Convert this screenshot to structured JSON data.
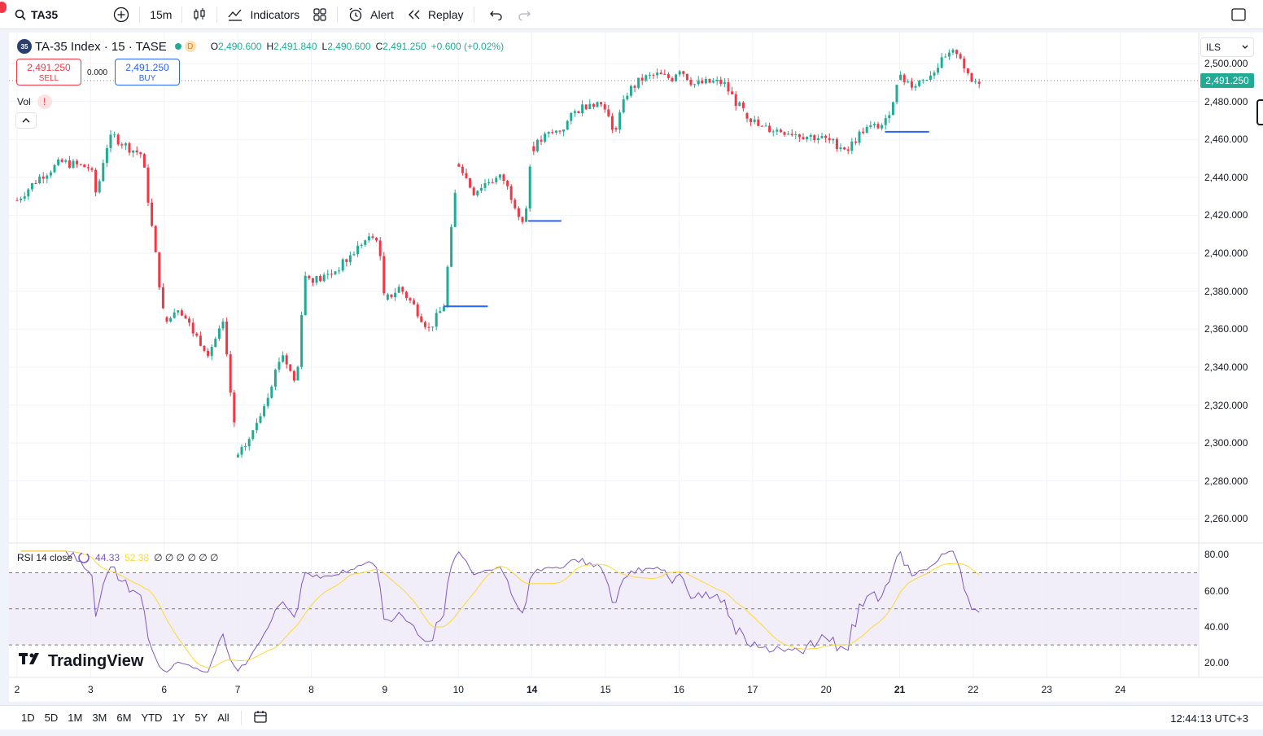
{
  "toolbar": {
    "symbol": "TA35",
    "interval": "15m",
    "indicators_label": "Indicators",
    "alert_label": "Alert",
    "replay_label": "Replay"
  },
  "legend": {
    "logo_text": "35",
    "title": "TA-35 Index · 15 · TASE",
    "badge": "D",
    "o_label": "O",
    "o_value": "2,490.600",
    "h_label": "H",
    "h_value": "2,491.840",
    "l_label": "L",
    "l_value": "2,490.600",
    "c_label": "C",
    "c_value": "2,491.250",
    "change": "+0.600 (+0.02%)"
  },
  "trade": {
    "sell_price": "2,491.250",
    "sell_label": "SELL",
    "spread": "0.000",
    "buy_price": "2,491.250",
    "buy_label": "BUY"
  },
  "volume": {
    "label": "Vol",
    "warning": "!"
  },
  "currency": "ILS",
  "last_price": "2,491.250",
  "rsi": {
    "title": "RSI 14 close",
    "value": "44.33",
    "ma_value": "52.38",
    "extra": "∅ ∅ ∅ ∅ ∅ ∅",
    "levels": [
      70,
      50,
      30
    ]
  },
  "brand": "TradingView",
  "timezone_clock": "12:44:13 UTC+3",
  "ranges": [
    "1D",
    "5D",
    "1M",
    "3M",
    "6M",
    "YTD",
    "1Y",
    "5Y",
    "All"
  ],
  "colors": {
    "up": "#22ab94",
    "down": "#f23645",
    "rsi": "#7e57c2",
    "rsi_ma": "#fdd835",
    "level": "#2962ff"
  },
  "chart_data": [
    {
      "type": "candlestick",
      "title": "TA-35 Index · 15 · TASE",
      "y_ticks": [
        2500,
        2480,
        2460,
        2440,
        2420,
        2400,
        2380,
        2360,
        2340,
        2320,
        2300,
        2280,
        2260
      ],
      "y_tick_labels": [
        "2,500.000",
        "2,480.000",
        "2,460.000",
        "2,440.000",
        "2,420.000",
        "2,400.000",
        "2,380.000",
        "2,360.000",
        "2,340.000",
        "2,320.000",
        "2,300.000",
        "2,280.000",
        "2,260.000"
      ],
      "ylim": [
        2252,
        2512
      ],
      "x_ticks": [
        "2",
        "3",
        "6",
        "7",
        "8",
        "9",
        "10",
        "14",
        "15",
        "16",
        "17",
        "20",
        "21",
        "22",
        "23",
        "24"
      ],
      "close_path": [
        [
          0,
          2428
        ],
        [
          0.3,
          2440
        ],
        [
          0.6,
          2448
        ],
        [
          1.0,
          2445
        ],
        [
          1.08,
          2430
        ],
        [
          1.2,
          2455
        ],
        [
          1.3,
          2462
        ],
        [
          1.5,
          2456
        ],
        [
          1.7,
          2452
        ],
        [
          2.0,
          2365
        ],
        [
          2.2,
          2372
        ],
        [
          2.4,
          2358
        ],
        [
          2.6,
          2348
        ],
        [
          2.8,
          2362
        ],
        [
          3.0,
          2292
        ],
        [
          3.2,
          2305
        ],
        [
          3.4,
          2325
        ],
        [
          3.6,
          2348
        ],
        [
          3.8,
          2330
        ],
        [
          3.9,
          2388
        ],
        [
          4.1,
          2386
        ],
        [
          4.3,
          2390
        ],
        [
          4.5,
          2397
        ],
        [
          4.7,
          2406
        ],
        [
          4.9,
          2409
        ],
        [
          5.0,
          2375
        ],
        [
          5.2,
          2382
        ],
        [
          5.4,
          2372
        ],
        [
          5.6,
          2360
        ],
        [
          5.8,
          2372
        ],
        [
          6.0,
          2448
        ],
        [
          6.2,
          2432
        ],
        [
          6.4,
          2438
        ],
        [
          6.6,
          2440
        ],
        [
          6.9,
          2415
        ],
        [
          7.0,
          2455
        ],
        [
          7.2,
          2462
        ],
        [
          7.4,
          2465
        ],
        [
          7.6,
          2475
        ],
        [
          7.8,
          2480
        ],
        [
          8.0,
          2478
        ],
        [
          8.1,
          2462
        ],
        [
          8.3,
          2485
        ],
        [
          8.5,
          2492
        ],
        [
          8.7,
          2494
        ],
        [
          8.9,
          2492
        ],
        [
          9.0,
          2498
        ],
        [
          9.2,
          2489
        ],
        [
          9.4,
          2490
        ],
        [
          9.6,
          2490
        ],
        [
          9.8,
          2478
        ],
        [
          9.9,
          2474
        ],
        [
          10.1,
          2466
        ],
        [
          10.3,
          2465
        ],
        [
          10.5,
          2464
        ],
        [
          10.7,
          2462
        ],
        [
          10.9,
          2461
        ],
        [
          11.1,
          2458
        ],
        [
          11.3,
          2455
        ],
        [
          11.5,
          2465
        ],
        [
          11.8,
          2468
        ],
        [
          12.0,
          2492
        ],
        [
          12.2,
          2489
        ],
        [
          12.4,
          2494
        ],
        [
          12.6,
          2502
        ],
        [
          12.8,
          2507
        ],
        [
          12.95,
          2490
        ],
        [
          13.1,
          2491
        ]
      ],
      "horizontal_levels": [
        {
          "from": 5.8,
          "to": 6.4,
          "y": 2372
        },
        {
          "from": 6.95,
          "to": 7.4,
          "y": 2417
        },
        {
          "from": 11.8,
          "to": 12.4,
          "y": 2464
        }
      ]
    },
    {
      "type": "line",
      "title": "RSI 14 close",
      "y_ticks": [
        80,
        60,
        40,
        20
      ],
      "y_tick_labels": [
        "80.00",
        "60.00",
        "40.00",
        "20.00"
      ],
      "ylim": [
        12,
        86
      ]
    }
  ]
}
